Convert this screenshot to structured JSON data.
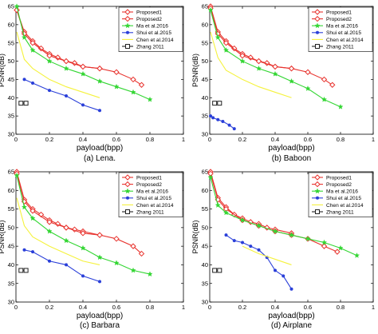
{
  "figure": {
    "legend_entries": [
      "Proposed1",
      "Proposed2",
      "Ma et al.2016",
      "Shui et al.2015",
      "Chen et al.2014",
      "Zhang 2011"
    ],
    "legend_placement": "top-right",
    "colors": {
      "Proposed1": "#e8332e",
      "Proposed2": "#e8332e",
      "Ma et al.2016": "#33d633",
      "Shui et al.2015": "#2a3fd9",
      "Chen et al.2014": "#f5f23c",
      "Zhang 2011": "#222222"
    },
    "markers": {
      "Proposed1": "diamond-open",
      "Proposed2": "diamond-open",
      "Ma et al.2016": "star",
      "Shui et al.2015": "dot",
      "Chen et al.2014": "none",
      "Zhang 2011": "square-open"
    }
  },
  "chart_data": [
    {
      "type": "line",
      "caption": "(a) Lena.",
      "xlabel": "payload(bpp)",
      "ylabel": "PSNR(dB)",
      "xlim": [
        0,
        1
      ],
      "ylim": [
        30,
        65
      ],
      "xticks": [
        "0",
        "0.2",
        "0.4",
        "0.6",
        "0.8",
        "1"
      ],
      "yticks": [
        "30",
        "35",
        "40",
        "45",
        "50",
        "55",
        "60",
        "65"
      ],
      "grid": false,
      "series": [
        {
          "name": "Proposed1",
          "x": [
            0.005,
            0.05,
            0.1,
            0.15,
            0.2,
            0.25,
            0.3,
            0.35,
            0.4,
            0.5
          ],
          "y": [
            64,
            58,
            55.5,
            53.5,
            52,
            51,
            50,
            49.5,
            48.5,
            48
          ]
        },
        {
          "name": "Proposed2",
          "x": [
            0.005,
            0.05,
            0.1,
            0.2,
            0.3,
            0.4,
            0.5,
            0.6,
            0.7,
            0.75
          ],
          "y": [
            64,
            57.5,
            55,
            51.5,
            50,
            48.5,
            48,
            47,
            45,
            43.5
          ]
        },
        {
          "name": "Ma et al.2016",
          "x": [
            0.005,
            0.05,
            0.1,
            0.2,
            0.3,
            0.4,
            0.5,
            0.6,
            0.7,
            0.8
          ],
          "y": [
            65,
            56.5,
            53,
            50,
            48,
            46.5,
            44.5,
            43,
            41.5,
            39.5
          ]
        },
        {
          "name": "Shui et al.2015",
          "x": [
            0.05,
            0.1,
            0.2,
            0.3,
            0.4,
            0.5
          ],
          "y": [
            45,
            44,
            42,
            40.5,
            38,
            36.5
          ]
        },
        {
          "name": "Chen et al.2014",
          "x": [
            0.005,
            0.05,
            0.1,
            0.2,
            0.3,
            0.4,
            0.5
          ],
          "y": [
            58,
            50.5,
            48,
            45,
            43,
            41.5,
            40
          ]
        },
        {
          "name": "Zhang 2011",
          "x": [
            0.03,
            0.06
          ],
          "y": [
            38.5,
            38.5
          ]
        }
      ]
    },
    {
      "type": "line",
      "caption": "(b) Baboon",
      "xlabel": "payload(bpp)",
      "ylabel": "PSNR(dB)",
      "xlim": [
        0,
        1
      ],
      "ylim": [
        30,
        65
      ],
      "xticks": [
        "0",
        "0.2",
        "0.4",
        "0.6",
        "0.8",
        "1"
      ],
      "yticks": [
        "30",
        "35",
        "40",
        "45",
        "50",
        "55",
        "60",
        "65"
      ],
      "grid": false,
      "series": [
        {
          "name": "Proposed1",
          "x": [
            0.005,
            0.05,
            0.1,
            0.15,
            0.2,
            0.25,
            0.3,
            0.35,
            0.4,
            0.5
          ],
          "y": [
            65,
            58,
            55.5,
            53.5,
            52,
            51,
            50,
            49.5,
            48.5,
            48
          ]
        },
        {
          "name": "Proposed2",
          "x": [
            0.005,
            0.05,
            0.1,
            0.2,
            0.3,
            0.4,
            0.5,
            0.6,
            0.7,
            0.75
          ],
          "y": [
            64.5,
            57.5,
            55,
            51.5,
            50,
            48.5,
            48,
            47,
            45,
            43.5
          ]
        },
        {
          "name": "Ma et al.2016",
          "x": [
            0.005,
            0.05,
            0.1,
            0.2,
            0.3,
            0.4,
            0.5,
            0.6,
            0.7,
            0.8
          ],
          "y": [
            64,
            56.5,
            53,
            50,
            48,
            46.5,
            44.5,
            42.5,
            39.5,
            37.5
          ]
        },
        {
          "name": "Shui et al.2015",
          "x": [
            0.005,
            0.02,
            0.05,
            0.08,
            0.12,
            0.15
          ],
          "y": [
            35,
            34.5,
            34,
            33.5,
            32.5,
            31.5
          ]
        },
        {
          "name": "Chen et al.2014",
          "x": [
            0.005,
            0.05,
            0.1,
            0.2,
            0.3,
            0.4,
            0.5
          ],
          "y": [
            58,
            51,
            47.5,
            45,
            43,
            41.5,
            40
          ]
        },
        {
          "name": "Zhang 2011",
          "x": [
            0.03,
            0.06
          ],
          "y": [
            38.5,
            38.5
          ]
        }
      ]
    },
    {
      "type": "line",
      "caption": "(c) Barbara",
      "xlabel": "payload(bpp)",
      "ylabel": "PSNR(dB)",
      "xlim": [
        0,
        1
      ],
      "ylim": [
        30,
        65
      ],
      "xticks": [
        "0",
        "0.2",
        "0.4",
        "0.6",
        "0.8",
        "1"
      ],
      "yticks": [
        "30",
        "35",
        "40",
        "45",
        "50",
        "55",
        "60",
        "65"
      ],
      "grid": false,
      "series": [
        {
          "name": "Proposed1",
          "x": [
            0.005,
            0.05,
            0.1,
            0.15,
            0.2,
            0.25,
            0.3,
            0.35,
            0.4,
            0.5
          ],
          "y": [
            65,
            57.5,
            55,
            53.5,
            52,
            51,
            50,
            49.5,
            49,
            48
          ]
        },
        {
          "name": "Proposed2",
          "x": [
            0.005,
            0.05,
            0.1,
            0.2,
            0.3,
            0.4,
            0.5,
            0.6,
            0.7,
            0.75
          ],
          "y": [
            64.5,
            57,
            54.5,
            51.5,
            50,
            48.5,
            48,
            47,
            45,
            43
          ]
        },
        {
          "name": "Ma et al.2016",
          "x": [
            0.005,
            0.05,
            0.1,
            0.2,
            0.3,
            0.4,
            0.5,
            0.6,
            0.7,
            0.8
          ],
          "y": [
            64,
            55.5,
            52.5,
            49,
            46.5,
            44.5,
            42,
            40.5,
            38.5,
            37.5
          ]
        },
        {
          "name": "Shui et al.2015",
          "x": [
            0.05,
            0.1,
            0.2,
            0.3,
            0.4,
            0.5
          ],
          "y": [
            44,
            43.5,
            41,
            40,
            37,
            35.5
          ]
        },
        {
          "name": "Chen et al.2014",
          "x": [
            0.005,
            0.05,
            0.1,
            0.2,
            0.3,
            0.4,
            0.5
          ],
          "y": [
            58,
            50.5,
            47.5,
            45,
            43,
            41,
            40
          ]
        },
        {
          "name": "Zhang 2011",
          "x": [
            0.03,
            0.06
          ],
          "y": [
            38.5,
            38.5
          ]
        }
      ]
    },
    {
      "type": "line",
      "caption": "(d) Airplane",
      "xlabel": "payload(bpp)",
      "ylabel": "PSNR(dB)",
      "xlim": [
        0,
        1
      ],
      "ylim": [
        30,
        65
      ],
      "xticks": [
        "0",
        "0.2",
        "0.4",
        "0.6",
        "0.8",
        "1"
      ],
      "yticks": [
        "30",
        "35",
        "40",
        "45",
        "50",
        "55",
        "60",
        "65"
      ],
      "grid": false,
      "series": [
        {
          "name": "Proposed1",
          "x": [
            0.005,
            0.05,
            0.1,
            0.15,
            0.2,
            0.25,
            0.3,
            0.35,
            0.4,
            0.5
          ],
          "y": [
            65,
            58,
            55.5,
            53.5,
            52.5,
            51.5,
            51,
            50,
            49.5,
            48.5
          ]
        },
        {
          "name": "Proposed2",
          "x": [
            0.005,
            0.05,
            0.1,
            0.2,
            0.3,
            0.4,
            0.5,
            0.6,
            0.7,
            0.78
          ],
          "y": [
            64.5,
            57.5,
            55,
            52,
            50.5,
            49,
            48,
            47,
            45,
            43.5
          ]
        },
        {
          "name": "Ma et al.2016",
          "x": [
            0.005,
            0.05,
            0.1,
            0.2,
            0.3,
            0.4,
            0.5,
            0.6,
            0.7,
            0.8,
            0.9
          ],
          "y": [
            63.5,
            56,
            54,
            52,
            50.5,
            49,
            48,
            47,
            46,
            44.5,
            42.5
          ]
        },
        {
          "name": "Shui et al.2015",
          "x": [
            0.1,
            0.15,
            0.2,
            0.25,
            0.3,
            0.35,
            0.4,
            0.45,
            0.5
          ],
          "y": [
            48,
            46.5,
            46,
            45,
            44,
            42,
            38.5,
            37,
            33.5
          ]
        },
        {
          "name": "Chen et al.2014",
          "x": [
            0.2,
            0.3,
            0.4,
            0.5
          ],
          "y": [
            45,
            43,
            41.5,
            40
          ]
        },
        {
          "name": "Zhang 2011",
          "x": [
            0.03,
            0.06
          ],
          "y": [
            38.5,
            38.5
          ]
        }
      ]
    }
  ]
}
